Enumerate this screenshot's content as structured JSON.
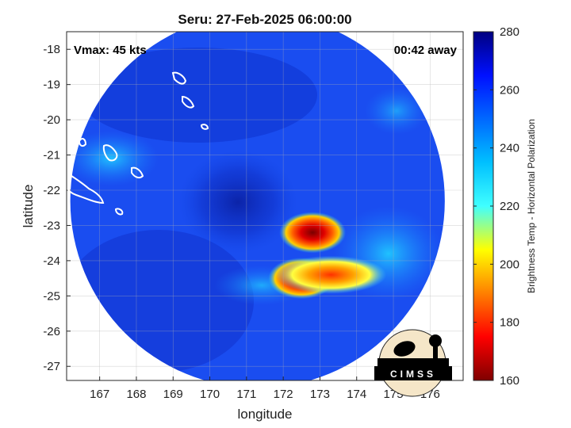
{
  "chart_data": {
    "type": "heatmap",
    "title": "Seru: 27-Feb-2025 06:00:00",
    "xlabel": "longitude",
    "ylabel": "latitude",
    "xlim": [
      166.1,
      176.9
    ],
    "ylim": [
      -27.4,
      -17.5
    ],
    "xticks": [
      167,
      168,
      169,
      170,
      171,
      172,
      173,
      174,
      175,
      176
    ],
    "yticks": [
      -18,
      -19,
      -20,
      -21,
      -22,
      -23,
      -24,
      -25,
      -26,
      -27
    ],
    "grid": true,
    "annotations": {
      "vmax": "Vmax: 45 kts",
      "away": "00:42 away"
    },
    "colorbar": {
      "label": "Brightness Temp - Horizontal Polarization",
      "range": [
        160,
        280
      ],
      "ticks": [
        160,
        180,
        200,
        220,
        240,
        260,
        280
      ],
      "colors": [
        "#7f0000",
        "#ff0000",
        "#ffff00",
        "#00ffff",
        "#0000ff",
        "#00007f"
      ]
    },
    "swath": {
      "center": [
        171.3,
        -22.3
      ],
      "radius_deg": 5.1
    },
    "cold_regions": [
      {
        "lon": 172.5,
        "lat": -24.5,
        "min_temp": 170
      },
      {
        "lon": 172.8,
        "lat": -23.2,
        "min_temp": 175
      },
      {
        "lon": 173.3,
        "lat": -24.4,
        "min_temp": 190
      }
    ]
  },
  "logo_text": "CIMSS"
}
